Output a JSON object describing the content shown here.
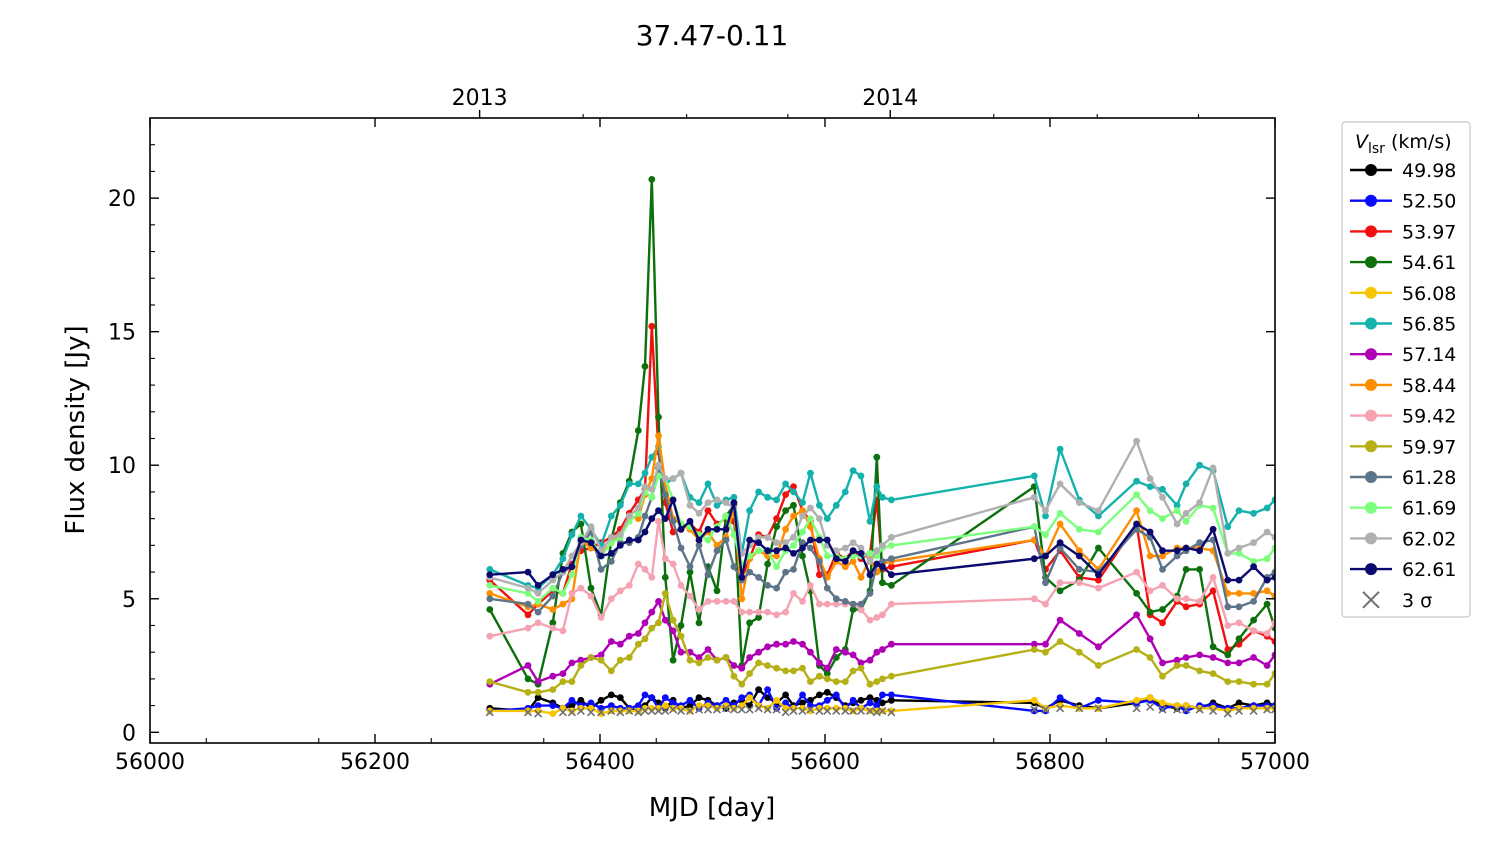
{
  "chart_data": {
    "type": "line",
    "title": "37.47-0.11",
    "xlabel": "MJD [day]",
    "ylabel": "Flux density [Jy]",
    "xlim": [
      56000,
      57000
    ],
    "ylim": [
      -0.4,
      23
    ],
    "xticks": [
      56000,
      56200,
      56400,
      56600,
      56800,
      57000
    ],
    "yticks": [
      0,
      5,
      10,
      15,
      20
    ],
    "top_axis": {
      "ticks": [
        56293,
        56658
      ],
      "labels": [
        "2013",
        "2014"
      ]
    },
    "legend": {
      "title_symbol": "V",
      "title_subscript": "lsr",
      "title_unit": " (km/s)",
      "position": "outside-right",
      "sigma_label": "3 σ"
    },
    "x": [
      56302,
      56336,
      56345,
      56358,
      56367,
      56375,
      56383,
      56392,
      56401,
      56410,
      56418,
      56426,
      56434,
      56440,
      56446,
      56452,
      56458,
      56465,
      56472,
      56480,
      56488,
      56496,
      56504,
      56512,
      56519,
      56526,
      56533,
      56541,
      56549,
      56557,
      56565,
      56572,
      56580,
      56587,
      56595,
      56602,
      56610,
      56618,
      56625,
      56632,
      56640,
      56646,
      56651,
      56659,
      56786,
      56796,
      56809,
      56826,
      56843,
      56877,
      56889,
      56900,
      56913,
      56921,
      56933,
      56945,
      56958,
      56968,
      56981,
      56993,
      57000
    ],
    "series": [
      {
        "name": "49.98",
        "color": "#000000",
        "values": [
          0.9,
          0.8,
          1.3,
          1.1,
          0.9,
          1.0,
          1.2,
          0.9,
          1.2,
          1.4,
          1.3,
          0.9,
          0.8,
          1.0,
          1.3,
          1.1,
          0.9,
          1.2,
          0.9,
          1.0,
          1.3,
          1.2,
          1.0,
          0.9,
          1.1,
          1.2,
          1.0,
          1.6,
          1.3,
          1.1,
          1.4,
          1.0,
          1.1,
          1.2,
          1.4,
          1.5,
          1.3,
          1.0,
          1.1,
          1.2,
          1.3,
          1.2,
          1.1,
          1.2,
          1.1,
          0.9,
          1.2,
          1.0,
          0.9,
          1.1,
          1.3,
          1.0,
          0.9,
          1.0,
          0.9,
          1.1,
          0.9,
          1.1,
          1.0,
          1.1,
          1.0
        ]
      },
      {
        "name": "52.50",
        "color": "#0a0aff",
        "values": [
          0.8,
          0.9,
          1.0,
          1.0,
          0.9,
          1.2,
          1.0,
          1.1,
          0.9,
          1.0,
          0.9,
          0.9,
          1.0,
          1.4,
          1.3,
          0.9,
          1.3,
          1.1,
          1.0,
          1.2,
          0.9,
          1.1,
          1.0,
          1.2,
          1.0,
          1.3,
          1.4,
          1.0,
          1.6,
          0.9,
          1.1,
          0.9,
          1.4,
          1.0,
          1.0,
          1.2,
          1.4,
          0.9,
          1.2,
          0.9,
          1.1,
          1.0,
          1.4,
          1.4,
          0.8,
          0.8,
          1.3,
          0.9,
          1.2,
          1.1,
          1.2,
          0.9,
          1.0,
          0.8,
          1.0,
          1.0,
          0.9,
          0.9,
          1.0,
          1.0,
          1.0
        ]
      },
      {
        "name": "53.97",
        "color": "#f01010",
        "values": [
          5.7,
          4.4,
          4.8,
          5.3,
          5.2,
          6.3,
          6.8,
          6.9,
          7.1,
          7.3,
          7.6,
          8.2,
          8.7,
          9.1,
          15.2,
          10.5,
          8.6,
          7.5,
          7.6,
          7.8,
          7.5,
          8.3,
          7.8,
          8.0,
          7.9,
          5.8,
          6.5,
          7.4,
          7.3,
          8.0,
          8.9,
          9.2,
          8.3,
          7.9,
          5.9,
          5.9,
          6.7,
          6.5,
          6.8,
          6.5,
          6.7,
          8.7,
          6.1,
          6.2,
          7.2,
          6.1,
          6.8,
          5.8,
          5.7,
          7.8,
          4.4,
          4.1,
          4.9,
          4.7,
          4.8,
          5.3,
          3.1,
          3.3,
          3.8,
          3.6,
          3.4
        ]
      },
      {
        "name": "54.61",
        "color": "#0c700c",
        "values": [
          4.6,
          2.0,
          1.8,
          4.1,
          6.7,
          7.5,
          7.8,
          5.4,
          4.4,
          7.2,
          8.6,
          9.4,
          11.3,
          13.7,
          20.7,
          11.8,
          5.8,
          2.7,
          4.0,
          6.0,
          4.1,
          6.2,
          5.3,
          8.1,
          8.5,
          2.5,
          4.1,
          4.3,
          6.3,
          7.7,
          8.3,
          8.5,
          6.6,
          5.3,
          2.5,
          2.2,
          2.8,
          3.1,
          4.6,
          4.6,
          5.3,
          10.3,
          5.6,
          5.5,
          9.2,
          5.8,
          5.3,
          5.7,
          6.9,
          5.2,
          4.5,
          4.6,
          5.1,
          6.1,
          6.1,
          3.2,
          2.9,
          3.5,
          4.2,
          4.8,
          3.9
        ]
      },
      {
        "name": "56.08",
        "color": "#f7c600",
        "values": [
          0.8,
          0.8,
          0.8,
          0.7,
          0.9,
          0.8,
          0.9,
          0.9,
          0.7,
          0.8,
          0.8,
          0.8,
          0.8,
          0.9,
          0.9,
          0.9,
          1.0,
          0.9,
          0.9,
          0.8,
          1.0,
          1.0,
          0.9,
          1.0,
          0.9,
          1.0,
          1.3,
          1.0,
          0.9,
          1.2,
          0.9,
          0.9,
          0.9,
          0.8,
          0.9,
          0.9,
          0.9,
          0.9,
          0.8,
          0.9,
          0.8,
          0.8,
          0.8,
          0.8,
          1.2,
          0.9,
          1.0,
          0.9,
          0.9,
          1.2,
          1.3,
          1.1,
          1.0,
          1.0,
          0.9,
          0.9,
          0.8,
          0.9,
          0.9,
          0.9,
          0.9
        ]
      },
      {
        "name": "56.85",
        "color": "#15b2ad",
        "values": [
          6.1,
          5.5,
          5.4,
          5.9,
          6.5,
          7.4,
          8.1,
          7.6,
          7.0,
          8.1,
          8.5,
          9.3,
          9.3,
          9.7,
          10.3,
          10.7,
          9.3,
          9.5,
          9.7,
          8.8,
          8.6,
          9.3,
          8.5,
          8.7,
          8.8,
          6.7,
          8.3,
          9.0,
          8.8,
          8.7,
          9.3,
          9.0,
          8.6,
          9.7,
          8.5,
          8.0,
          8.5,
          9.0,
          9.8,
          9.6,
          7.9,
          9.2,
          8.8,
          8.7,
          9.6,
          8.1,
          10.6,
          8.7,
          8.1,
          9.4,
          9.2,
          9.1,
          8.5,
          9.3,
          10.0,
          9.8,
          7.7,
          8.3,
          8.2,
          8.4,
          8.7
        ]
      },
      {
        "name": "57.14",
        "color": "#b000b5",
        "values": [
          1.8,
          2.5,
          1.9,
          2.1,
          2.2,
          2.6,
          2.7,
          2.8,
          2.9,
          3.4,
          3.3,
          3.6,
          3.7,
          4.1,
          4.5,
          4.9,
          4.2,
          3.8,
          3.0,
          3.0,
          2.8,
          3.1,
          2.7,
          2.8,
          2.5,
          2.4,
          2.8,
          3.0,
          3.2,
          3.3,
          3.3,
          3.4,
          3.3,
          3.0,
          2.6,
          2.4,
          3.1,
          3.0,
          2.9,
          2.6,
          2.7,
          3.0,
          3.1,
          3.3,
          3.3,
          3.3,
          4.2,
          3.7,
          3.2,
          4.4,
          3.5,
          2.6,
          2.7,
          2.8,
          2.9,
          2.8,
          2.6,
          2.6,
          2.8,
          2.5,
          2.9
        ]
      },
      {
        "name": "58.44",
        "color": "#ff8d00",
        "values": [
          5.2,
          4.7,
          4.8,
          4.6,
          4.8,
          5.0,
          7.2,
          6.9,
          6.7,
          7.1,
          7.4,
          8.1,
          8.0,
          8.9,
          9.5,
          11.1,
          9.3,
          8.0,
          7.8,
          7.6,
          7.2,
          7.5,
          7.0,
          7.3,
          8.4,
          5.0,
          6.5,
          6.8,
          6.6,
          6.6,
          7.6,
          8.1,
          8.3,
          7.7,
          6.5,
          5.8,
          6.4,
          6.2,
          6.4,
          5.8,
          6.5,
          6.0,
          6.3,
          6.4,
          7.2,
          6.6,
          7.8,
          6.8,
          6.1,
          8.3,
          6.6,
          6.6,
          6.9,
          6.9,
          6.9,
          6.8,
          5.2,
          5.2,
          5.2,
          5.3,
          5.1
        ]
      },
      {
        "name": "59.42",
        "color": "#f5a3b2",
        "values": [
          3.6,
          3.9,
          4.1,
          3.9,
          3.8,
          5.2,
          5.4,
          5.1,
          4.3,
          5.0,
          5.3,
          5.5,
          6.3,
          6.1,
          5.8,
          7.9,
          6.5,
          6.3,
          5.5,
          5.1,
          4.6,
          4.9,
          4.9,
          4.9,
          4.9,
          4.5,
          4.5,
          4.5,
          4.5,
          4.4,
          4.5,
          5.2,
          4.9,
          5.5,
          4.8,
          4.8,
          4.8,
          4.8,
          4.8,
          4.6,
          4.2,
          4.3,
          4.4,
          4.8,
          5.0,
          4.8,
          5.6,
          5.6,
          5.4,
          6.0,
          5.3,
          5.5,
          5.0,
          5.0,
          4.9,
          5.8,
          4.0,
          4.1,
          3.8,
          3.7,
          4.1
        ]
      },
      {
        "name": "59.97",
        "color": "#b5b015",
        "values": [
          1.9,
          1.5,
          1.5,
          1.6,
          1.9,
          1.9,
          2.5,
          2.8,
          2.7,
          2.3,
          2.7,
          2.8,
          3.3,
          3.5,
          3.9,
          4.1,
          5.2,
          4.2,
          3.6,
          2.7,
          2.6,
          2.8,
          2.7,
          2.8,
          2.1,
          1.8,
          2.2,
          2.6,
          2.5,
          2.4,
          2.3,
          2.3,
          2.4,
          1.9,
          2.1,
          2.0,
          1.9,
          1.9,
          2.3,
          2.4,
          1.8,
          1.9,
          2.0,
          2.1,
          3.1,
          3.0,
          3.4,
          3.0,
          2.5,
          3.1,
          2.8,
          2.1,
          2.5,
          2.5,
          2.3,
          2.2,
          1.9,
          1.9,
          1.8,
          1.8,
          2.2
        ]
      },
      {
        "name": "61.28",
        "color": "#5e7488",
        "values": [
          5.0,
          4.8,
          4.5,
          5.1,
          6.0,
          6.2,
          7.0,
          7.5,
          6.1,
          6.4,
          7.1,
          7.1,
          7.3,
          8.1,
          8.8,
          9.9,
          8.9,
          7.9,
          6.9,
          6.2,
          7.0,
          5.9,
          6.8,
          7.2,
          6.2,
          5.7,
          6.0,
          5.8,
          5.5,
          5.4,
          6.0,
          6.1,
          7.1,
          6.9,
          6.4,
          5.4,
          5.0,
          4.9,
          4.8,
          4.8,
          5.2,
          6.3,
          6.4,
          6.5,
          7.7,
          5.6,
          6.9,
          6.1,
          6.0,
          7.6,
          7.3,
          6.1,
          6.6,
          6.8,
          7.1,
          7.2,
          4.7,
          4.7,
          4.9,
          5.8,
          6.0
        ]
      },
      {
        "name": "61.69",
        "color": "#7cff7c",
        "values": [
          5.5,
          5.2,
          4.9,
          5.4,
          5.2,
          5.9,
          7.3,
          7.2,
          6.6,
          7.1,
          7.3,
          7.9,
          8.2,
          9.0,
          8.8,
          9.6,
          9.5,
          8.7,
          7.8,
          7.7,
          7.4,
          7.2,
          7.7,
          8.1,
          7.4,
          6.3,
          6.6,
          6.8,
          6.8,
          6.2,
          6.8,
          7.0,
          7.5,
          8.0,
          7.3,
          6.6,
          6.6,
          6.5,
          6.6,
          6.6,
          6.7,
          6.6,
          6.9,
          7.0,
          7.7,
          7.4,
          8.2,
          7.6,
          7.5,
          8.9,
          8.3,
          8.0,
          8.3,
          7.9,
          8.5,
          8.4,
          6.7,
          6.7,
          6.4,
          6.5,
          6.9
        ]
      },
      {
        "name": "62.02",
        "color": "#b0b0b0",
        "values": [
          5.8,
          5.4,
          5.2,
          5.7,
          6.0,
          6.6,
          7.1,
          7.7,
          6.8,
          7.3,
          7.4,
          8.1,
          8.4,
          9.2,
          9.1,
          10.0,
          9.5,
          9.5,
          9.7,
          8.5,
          8.2,
          8.6,
          8.7,
          8.6,
          8.4,
          6.7,
          7.0,
          7.3,
          7.3,
          7.1,
          7.1,
          7.3,
          8.1,
          8.4,
          8.0,
          7.0,
          6.8,
          6.9,
          7.1,
          6.9,
          6.4,
          6.8,
          7.0,
          7.3,
          8.8,
          8.3,
          9.3,
          8.6,
          8.3,
          10.9,
          9.5,
          8.8,
          7.8,
          8.2,
          8.6,
          9.9,
          6.7,
          6.9,
          7.1,
          7.5,
          7.3
        ]
      },
      {
        "name": "62.61",
        "color": "#0a0a6e",
        "values": [
          5.9,
          6.0,
          5.5,
          5.9,
          6.1,
          6.2,
          7.2,
          7.1,
          6.6,
          6.7,
          7.0,
          7.2,
          7.2,
          7.5,
          8.0,
          8.3,
          8.0,
          8.7,
          7.6,
          7.9,
          7.2,
          7.6,
          7.6,
          7.6,
          8.6,
          5.8,
          7.2,
          7.1,
          6.8,
          6.8,
          6.9,
          6.7,
          6.9,
          7.2,
          7.2,
          7.2,
          6.5,
          6.4,
          6.8,
          6.7,
          5.9,
          6.3,
          6.2,
          5.9,
          6.5,
          6.6,
          7.1,
          6.6,
          5.9,
          7.8,
          7.5,
          6.8,
          6.8,
          6.9,
          6.8,
          7.6,
          5.7,
          5.7,
          6.2,
          5.7,
          5.8
        ]
      }
    ],
    "sigma_points": {
      "name": "3 σ",
      "color": "#707070",
      "x": [
        56302,
        56336,
        56345,
        56367,
        56375,
        56383,
        56392,
        56401,
        56410,
        56418,
        56426,
        56434,
        56440,
        56446,
        56452,
        56458,
        56465,
        56472,
        56480,
        56488,
        56496,
        56504,
        56512,
        56519,
        56526,
        56533,
        56541,
        56549,
        56557,
        56565,
        56572,
        56580,
        56587,
        56595,
        56602,
        56610,
        56618,
        56625,
        56632,
        56640,
        56646,
        56651,
        56659,
        56786,
        56796,
        56809,
        56826,
        56843,
        56877,
        56889,
        56900,
        56913,
        56921,
        56933,
        56945,
        56958,
        56968,
        56981,
        56993,
        57000
      ],
      "values": [
        0.75,
        0.75,
        0.7,
        0.75,
        0.75,
        0.8,
        0.75,
        0.75,
        0.8,
        0.75,
        0.8,
        0.75,
        0.8,
        0.8,
        0.8,
        0.8,
        0.85,
        0.8,
        0.8,
        0.85,
        0.85,
        0.85,
        0.9,
        0.85,
        0.85,
        0.85,
        0.9,
        0.85,
        0.85,
        0.75,
        0.8,
        0.8,
        0.85,
        0.8,
        0.8,
        0.8,
        0.8,
        0.8,
        0.8,
        0.8,
        0.75,
        0.8,
        0.75,
        0.85,
        0.85,
        0.9,
        0.9,
        0.9,
        0.9,
        0.95,
        0.85,
        0.85,
        0.85,
        0.85,
        0.8,
        0.7,
        0.8,
        0.8,
        0.85,
        0.85
      ]
    }
  }
}
